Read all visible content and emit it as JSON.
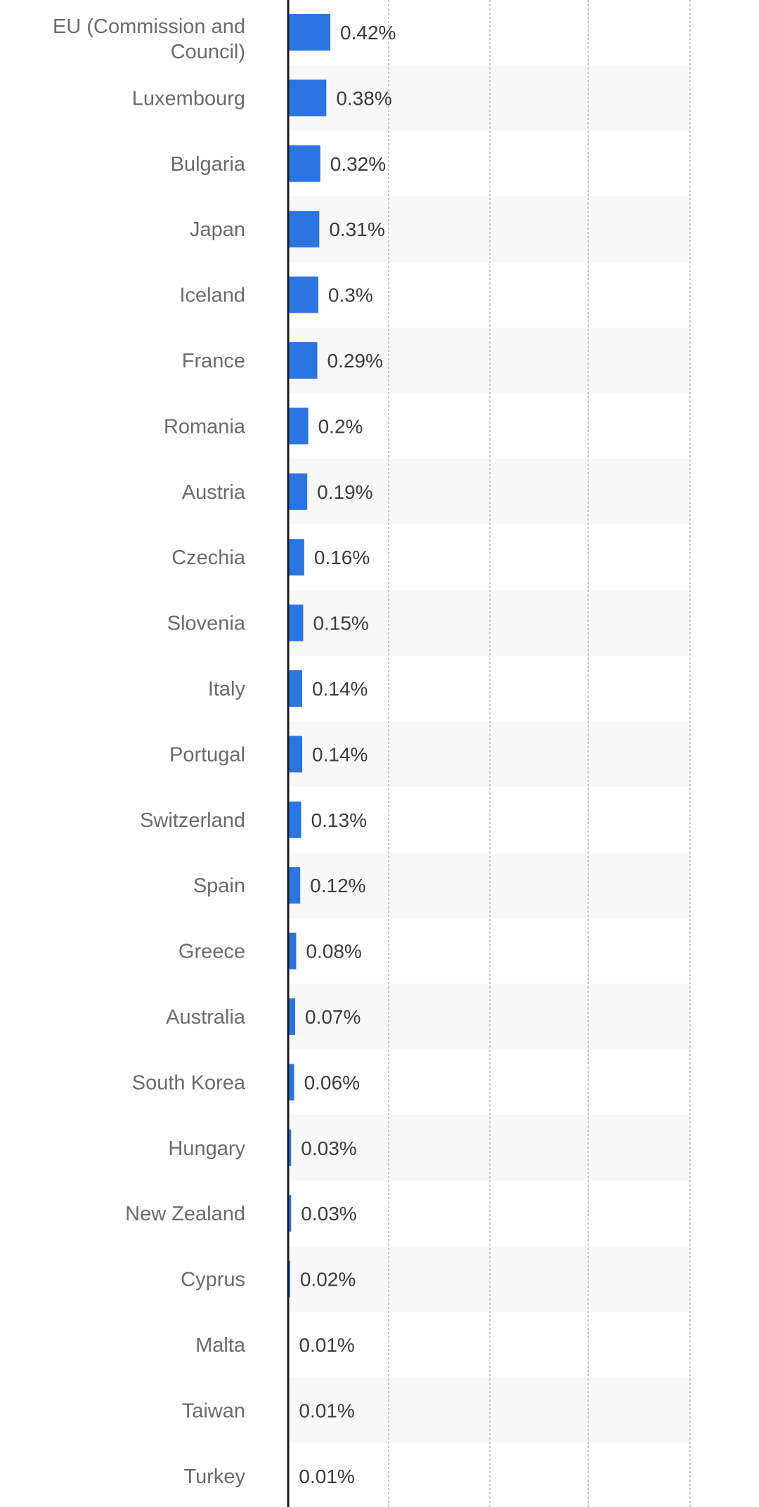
{
  "chart_data": {
    "type": "bar",
    "orientation": "horizontal",
    "categories": [
      "EU (Commission and Council)",
      "Luxembourg",
      "Bulgaria",
      "Japan",
      "Iceland",
      "France",
      "Romania",
      "Austria",
      "Czechia",
      "Slovenia",
      "Italy",
      "Portugal",
      "Switzerland",
      "Spain",
      "Greece",
      "Australia",
      "South Korea",
      "Hungary",
      "New Zealand",
      "Cyprus",
      "Malta",
      "Taiwan",
      "Turkey"
    ],
    "category_lines": [
      [
        "EU (Commission and",
        "Council)"
      ],
      [
        "Luxembourg"
      ],
      [
        "Bulgaria"
      ],
      [
        "Japan"
      ],
      [
        "Iceland"
      ],
      [
        "France"
      ],
      [
        "Romania"
      ],
      [
        "Austria"
      ],
      [
        "Czechia"
      ],
      [
        "Slovenia"
      ],
      [
        "Italy"
      ],
      [
        "Portugal"
      ],
      [
        "Switzerland"
      ],
      [
        "Spain"
      ],
      [
        "Greece"
      ],
      [
        "Australia"
      ],
      [
        "South Korea"
      ],
      [
        "Hungary"
      ],
      [
        "New Zealand"
      ],
      [
        "Cyprus"
      ],
      [
        "Malta"
      ],
      [
        "Taiwan"
      ],
      [
        "Turkey"
      ]
    ],
    "values": [
      0.42,
      0.38,
      0.32,
      0.31,
      0.3,
      0.29,
      0.2,
      0.19,
      0.16,
      0.15,
      0.14,
      0.14,
      0.13,
      0.12,
      0.08,
      0.07,
      0.06,
      0.03,
      0.03,
      0.02,
      0.01,
      0.01,
      0.01
    ],
    "value_labels": [
      "0.42%",
      "0.38%",
      "0.32%",
      "0.31%",
      "0.3%",
      "0.29%",
      "0.2%",
      "0.19%",
      "0.16%",
      "0.15%",
      "0.14%",
      "0.14%",
      "0.13%",
      "0.12%",
      "0.08%",
      "0.07%",
      "0.06%",
      "0.03%",
      "0.03%",
      "0.02%",
      "0.01%",
      "0.01%",
      "0.01%"
    ],
    "unit": "%",
    "xlim": [
      0,
      4
    ],
    "grid": true,
    "colors": {
      "bar": "#2b75e0",
      "axis": "#1a1a1a",
      "grid": "#c8c8c8",
      "band": "#f8f8f8"
    }
  }
}
